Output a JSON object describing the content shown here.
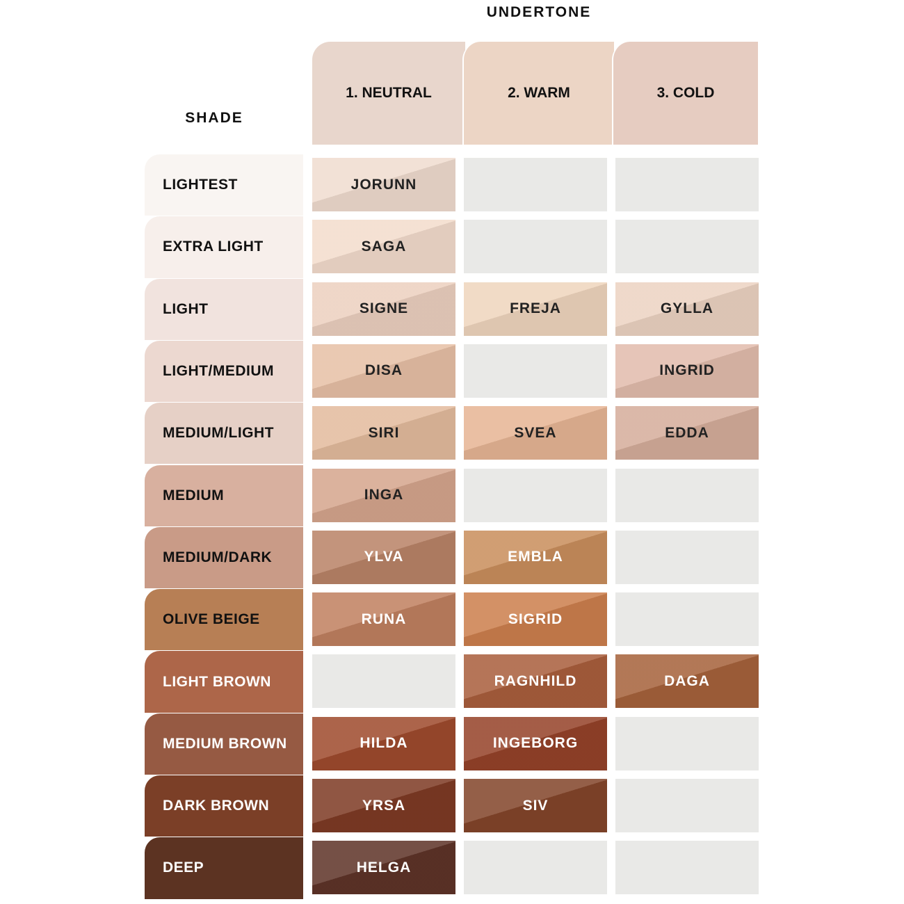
{
  "header": {
    "undertone": "UNDERTONE",
    "shade": "SHADE"
  },
  "columns": [
    {
      "label": "1. NEUTRAL",
      "color": "#e8d6cc"
    },
    {
      "label": "2. WARM",
      "color": "#ecd5c5"
    },
    {
      "label": "3. COLD",
      "color": "#e6ccc1"
    }
  ],
  "rows": [
    {
      "label": "LIGHTEST",
      "color": "#f9f5f2",
      "cells": [
        {
          "name": "JORUNN",
          "color": "#f0dccf"
        },
        null,
        null
      ]
    },
    {
      "label": "EXTRA LIGHT",
      "color": "#f7efeb",
      "cells": [
        {
          "name": "SAGA",
          "color": "#f3dccc"
        },
        null,
        null
      ]
    },
    {
      "label": "LIGHT",
      "color": "#f1e3de",
      "cells": [
        {
          "name": "SIGNE",
          "color": "#ecd0bf"
        },
        {
          "name": "FREJA",
          "color": "#efd5bd"
        },
        {
          "name": "GYLLA",
          "color": "#ecd3c2"
        }
      ]
    },
    {
      "label": "LIGHT/MEDIUM",
      "color": "#ecd8d0",
      "cells": [
        {
          "name": "DISA",
          "color": "#e7c0a6"
        },
        null,
        {
          "name": "INGRID",
          "color": "#e2bcac"
        }
      ]
    },
    {
      "label": "MEDIUM/LIGHT",
      "color": "#e6d0c6",
      "cells": [
        {
          "name": "SIRI",
          "color": "#e3bb9d"
        },
        {
          "name": "SVEA",
          "color": "#e6b594"
        },
        {
          "name": "EDDA",
          "color": "#d5ad9b"
        }
      ]
    },
    {
      "label": "MEDIUM",
      "color": "#d8b09f",
      "cells": [
        {
          "name": "INGA",
          "color": "#d5a58d"
        },
        null,
        null
      ]
    },
    {
      "label": "MEDIUM/DARK",
      "color": "#c99b87",
      "cells": [
        {
          "name": "YLVA",
          "color": "#b98367"
        },
        {
          "name": "EMBLA",
          "color": "#c98e5c"
        },
        null
      ]
    },
    {
      "label": "OLIVE BEIGE",
      "color": "#b77f55",
      "cells": [
        {
          "name": "RUNA",
          "color": "#c08060"
        },
        {
          "name": "SIGRID",
          "color": "#cc7f4d"
        },
        null
      ]
    },
    {
      "label": "LIGHT BROWN",
      "color": "#ad6649",
      "cells": [
        null,
        {
          "name": "RAGNHILD",
          "color": "#a95e3c"
        },
        {
          "name": "DAGA",
          "color": "#a6623b"
        }
      ]
    },
    {
      "label": "MEDIUM BROWN",
      "color": "#965a43",
      "cells": [
        {
          "name": "HILDA",
          "color": "#9e4a2d"
        },
        {
          "name": "INGEBORG",
          "color": "#954229"
        },
        null
      ]
    },
    {
      "label": "DARK BROWN",
      "color": "#7b3f27",
      "cells": [
        {
          "name": "YRSA",
          "color": "#7e3a24"
        },
        {
          "name": "SIV",
          "color": "#83452a"
        },
        null
      ]
    },
    {
      "label": "DEEP",
      "color": "#5c3322",
      "cells": [
        {
          "name": "HELGA",
          "color": "#5e3328"
        },
        null,
        null
      ]
    }
  ]
}
